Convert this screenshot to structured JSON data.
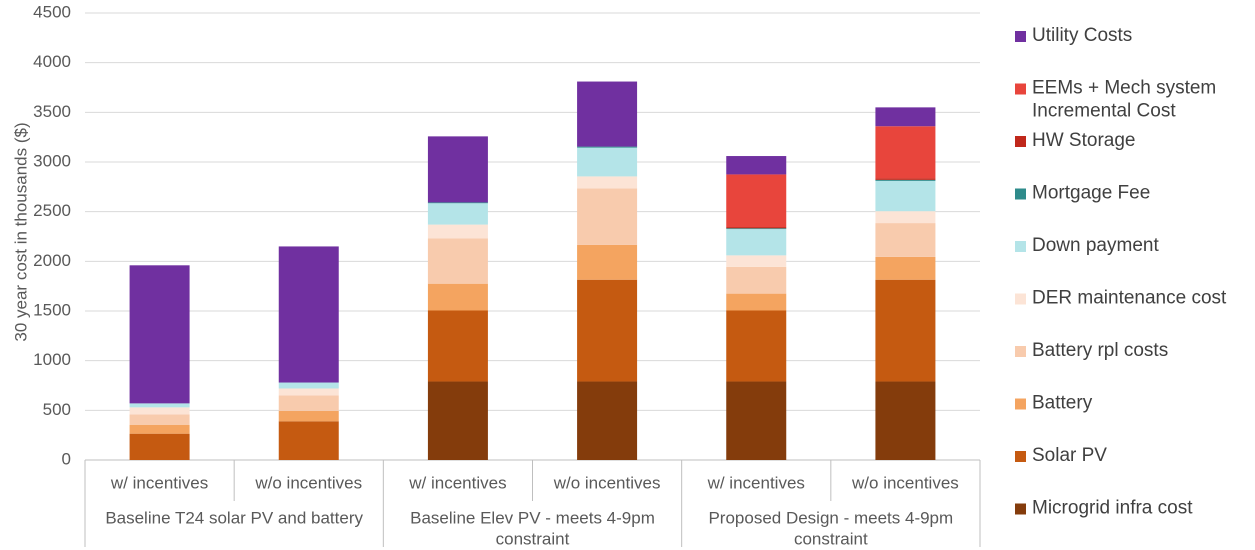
{
  "chart_data": {
    "type": "bar",
    "stacked": true,
    "ylabel": "30 year cost in thousands ($)",
    "ylim": [
      0,
      4500
    ],
    "yticks": [
      0,
      500,
      1000,
      1500,
      2000,
      2500,
      3000,
      3500,
      4000,
      4500
    ],
    "grid": true,
    "legend_position": "right",
    "categories": [
      "w/ incentives",
      "w/o incentives",
      "w/ incentives",
      "w/o incentives",
      "w/ incentives",
      "w/o incentives"
    ],
    "groups": [
      {
        "label": "Baseline T24 solar PV and battery",
        "lines": [
          "Baseline T24 solar PV and battery"
        ]
      },
      {
        "label": "Baseline Elev PV - meets 4-9pm constraint",
        "lines": [
          "Baseline Elev PV - meets 4-9pm",
          "constraint"
        ]
      },
      {
        "label": "Proposed Design - meets 4-9pm constraint",
        "lines": [
          "Proposed Design - meets 4-9pm",
          "constraint"
        ]
      }
    ],
    "series": [
      {
        "name": "Microgrid infra cost",
        "color": "#843c0c",
        "values": [
          0,
          0,
          790,
          790,
          790,
          790
        ]
      },
      {
        "name": "Solar PV",
        "color": "#c55a11",
        "values": [
          265,
          390,
          715,
          1025,
          715,
          1025
        ]
      },
      {
        "name": "Battery",
        "color": "#f4a460",
        "values": [
          90,
          105,
          270,
          350,
          170,
          230
        ]
      },
      {
        "name": "Battery rpl costs",
        "color": "#f8cbad",
        "values": [
          105,
          155,
          455,
          570,
          270,
          340
        ]
      },
      {
        "name": "DER maintenance cost",
        "color": "#fce4d6",
        "values": [
          70,
          70,
          140,
          120,
          115,
          120
        ]
      },
      {
        "name": "Down payment",
        "color": "#b4e4e8",
        "values": [
          40,
          60,
          215,
          290,
          265,
          305
        ]
      },
      {
        "name": "Mortgage Fee",
        "color": "#2e8b8b",
        "values": [
          0,
          0,
          8,
          10,
          8,
          10
        ]
      },
      {
        "name": "HW Storage",
        "color": "#c0281b",
        "values": [
          0,
          0,
          0,
          0,
          12,
          15
        ]
      },
      {
        "name": "EEMs + Mech system Incremental Cost",
        "color": "#e8453c",
        "values": [
          0,
          0,
          0,
          0,
          530,
          525
        ]
      },
      {
        "name": "Utility Costs",
        "color": "#7030a0",
        "values": [
          1390,
          1370,
          665,
          655,
          185,
          190
        ]
      }
    ],
    "legend_order": [
      "Utility Costs",
      "EEMs + Mech system Incremental Cost",
      "HW Storage",
      "Mortgage Fee",
      "Down payment",
      "DER maintenance cost",
      "Battery rpl costs",
      "Battery",
      "Solar PV",
      "Microgrid infra cost"
    ],
    "legend_lines": {
      "EEMs + Mech system Incremental Cost": [
        "EEMs + Mech system",
        "Incremental Cost"
      ]
    }
  }
}
